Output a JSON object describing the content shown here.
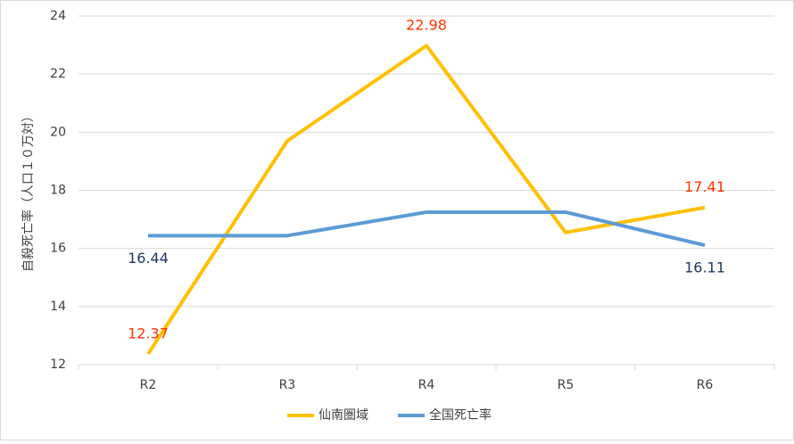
{
  "chart_data": {
    "type": "line",
    "y_label": "自殺死亡率（人口１０万対）",
    "categories": [
      "R2",
      "R3",
      "R4",
      "R5",
      "R6"
    ],
    "series": [
      {
        "name": "仙南圏域",
        "color": "#ffc000",
        "values": [
          12.37,
          19.7,
          22.98,
          16.55,
          17.41
        ],
        "value_labels": [
          "12.37",
          null,
          "22.98",
          null,
          "17.41"
        ],
        "label_color": "#ff3300"
      },
      {
        "name": "全国死亡率",
        "color": "#5b9bd5",
        "values": [
          16.44,
          16.44,
          17.25,
          17.25,
          16.11
        ],
        "value_labels": [
          "16.44",
          null,
          null,
          null,
          "16.11"
        ],
        "label_color": "#1f3864"
      }
    ],
    "ylim": [
      12,
      24
    ],
    "yticks": [
      12,
      14,
      16,
      18,
      20,
      22,
      24
    ],
    "grid": true
  }
}
